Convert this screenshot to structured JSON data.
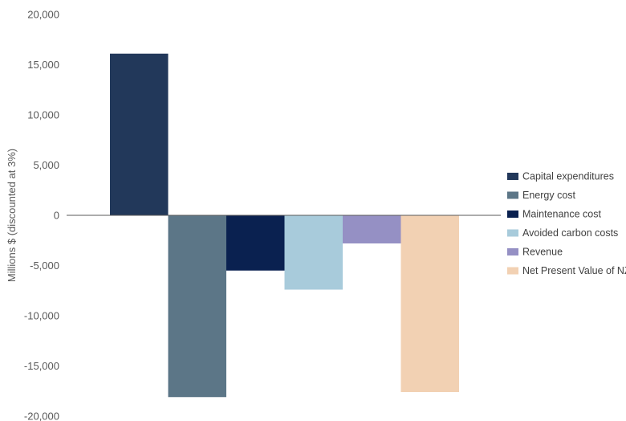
{
  "chart_data": {
    "type": "bar",
    "title": "",
    "xlabel": "",
    "ylabel": "Millions $ (discounted at 3%)",
    "ylim": [
      -20000,
      20000
    ],
    "yticks": [
      20000,
      15000,
      10000,
      5000,
      0,
      -5000,
      -10000,
      -15000,
      -20000
    ],
    "ytick_labels": [
      "20,000",
      "15,000",
      "10,000",
      "5,000",
      "0",
      "-5,000",
      "-10,000",
      "-15,000",
      "-20,000"
    ],
    "legend_position": "right",
    "grid": false,
    "series": [
      {
        "name": "Capital expenditures",
        "value": 16100,
        "color": "#22385a"
      },
      {
        "name": "Energy cost",
        "value": -18100,
        "color": "#5c7687"
      },
      {
        "name": "Maintenance cost",
        "value": -5500,
        "color": "#0a2150"
      },
      {
        "name": "Avoided carbon costs",
        "value": -7400,
        "color": "#a8cbdb"
      },
      {
        "name": "Revenue",
        "value": -2800,
        "color": "#9590c4"
      },
      {
        "name": "Net Present Value of NZS",
        "value": -17600,
        "color": "#f2d1b3"
      }
    ]
  }
}
